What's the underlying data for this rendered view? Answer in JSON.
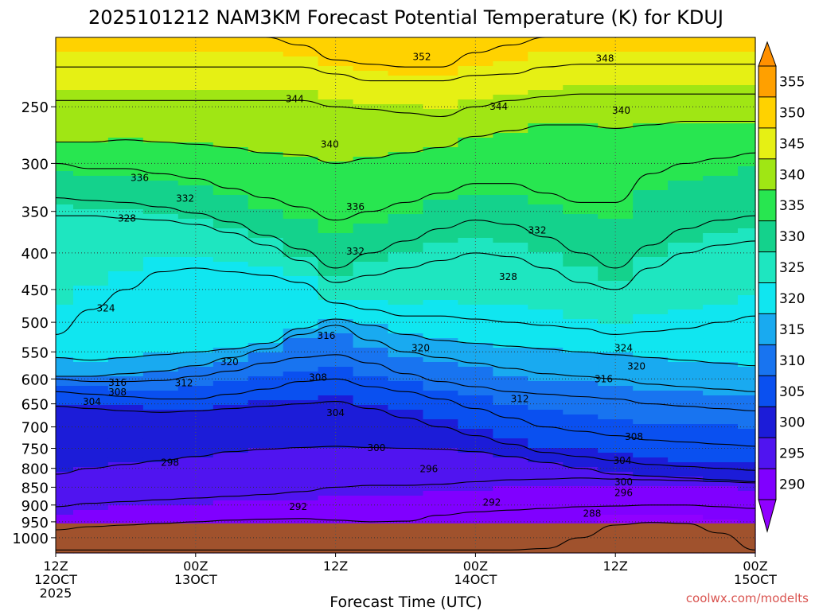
{
  "chart_data": {
    "type": "contour",
    "title": "2025101212 NAM3KM Forecast Potential Temperature (K) for KDUJ",
    "xlabel": "Forecast Time (UTC)",
    "ylabel": "",
    "credit": "coolwx.com/modelts",
    "x_ticks": [
      {
        "hour": 0,
        "l1": "12Z",
        "l2": "12OCT",
        "l3": "2025"
      },
      {
        "hour": 12,
        "l1": "00Z",
        "l2": "13OCT",
        "l3": ""
      },
      {
        "hour": 24,
        "l1": "12Z",
        "l2": "",
        "l3": ""
      },
      {
        "hour": 36,
        "l1": "00Z",
        "l2": "14OCT",
        "l3": ""
      },
      {
        "hour": 48,
        "l1": "12Z",
        "l2": "",
        "l3": ""
      },
      {
        "hour": 60,
        "l1": "00Z",
        "l2": "15OCT",
        "l3": ""
      }
    ],
    "y_ticks": [
      250,
      300,
      350,
      400,
      450,
      500,
      550,
      600,
      650,
      700,
      750,
      800,
      850,
      900,
      950,
      1000
    ],
    "yaxis": {
      "scale": "log",
      "top_hPa": 200,
      "bottom_hPa": 1050
    },
    "xaxis": {
      "start_hour": 0,
      "end_hour": 60
    },
    "ground_level_hPa": 955,
    "colorbar": {
      "levels": [
        290,
        295,
        300,
        305,
        310,
        315,
        320,
        325,
        330,
        335,
        340,
        345,
        350,
        355
      ],
      "colors": [
        "#8000ff",
        "#5014f0",
        "#1c1cd8",
        "#0a50f0",
        "#1874f0",
        "#19aaf0",
        "#10e6f0",
        "#1ee6c0",
        "#14d28c",
        "#28e650",
        "#a0e614",
        "#e6f014",
        "#ffd200",
        "#ffa000"
      ],
      "over_color": "#ff9000",
      "under_color": "#9000ff",
      "ground_color": "#a0522d"
    },
    "profile_hours": [
      0,
      3,
      6,
      9,
      12,
      15,
      18,
      21,
      24,
      27,
      30,
      33,
      36,
      39,
      42,
      45,
      48,
      51,
      54,
      57,
      60
    ],
    "isentrope_levels": [
      {
        "theta": 288,
        "pressures": [
          1040,
          1040,
          1040,
          1040,
          1040,
          1040,
          1040,
          1040,
          1040,
          1040,
          1040,
          1040,
          1040,
          1040,
          1035,
          1000,
          960,
          952,
          955,
          985,
          1040
        ]
      },
      {
        "theta": 292,
        "pressures": [
          975,
          965,
          960,
          955,
          950,
          945,
          942,
          940,
          945,
          950,
          948,
          930,
          920,
          915,
          910,
          905,
          903,
          900,
          900,
          905,
          910
        ]
      },
      {
        "theta": 296,
        "pressures": [
          905,
          895,
          890,
          885,
          880,
          875,
          870,
          862,
          850,
          845,
          845,
          842,
          835,
          830,
          828,
          825,
          828,
          830,
          832,
          835,
          838
        ]
      },
      {
        "theta": 300,
        "pressures": [
          815,
          800,
          790,
          780,
          770,
          758,
          752,
          748,
          745,
          748,
          750,
          752,
          758,
          770,
          785,
          800,
          815,
          820,
          825,
          830,
          835
        ]
      },
      {
        "theta": 304,
        "pressures": [
          655,
          660,
          665,
          668,
          665,
          660,
          655,
          650,
          645,
          660,
          680,
          700,
          720,
          740,
          760,
          770,
          780,
          790,
          795,
          800,
          805
        ]
      },
      {
        "theta": 308,
        "pressures": [
          625,
          630,
          635,
          640,
          640,
          630,
          620,
          605,
          600,
          615,
          625,
          640,
          660,
          680,
          700,
          710,
          720,
          730,
          735,
          740,
          745
        ]
      },
      {
        "theta": 312,
        "pressures": [
          600,
          605,
          605,
          603,
          595,
          585,
          570,
          560,
          555,
          570,
          590,
          605,
          615,
          625,
          630,
          635,
          640,
          650,
          655,
          660,
          665
        ]
      },
      {
        "theta": 316,
        "pressures": [
          595,
          595,
          590,
          585,
          575,
          560,
          545,
          520,
          505,
          530,
          550,
          560,
          570,
          580,
          590,
          595,
          600,
          610,
          615,
          620,
          625
        ]
      },
      {
        "theta": 320,
        "pressures": [
          560,
          565,
          560,
          555,
          550,
          545,
          535,
          510,
          495,
          505,
          520,
          530,
          535,
          540,
          545,
          550,
          555,
          560,
          565,
          570,
          575
        ]
      },
      {
        "theta": 324,
        "pressures": [
          520,
          480,
          450,
          425,
          420,
          425,
          430,
          440,
          470,
          480,
          490,
          490,
          495,
          500,
          505,
          510,
          520,
          515,
          510,
          500,
          490
        ]
      },
      {
        "theta": 328,
        "pressures": [
          355,
          355,
          358,
          360,
          365,
          375,
          390,
          410,
          440,
          430,
          420,
          410,
          400,
          405,
          420,
          440,
          450,
          420,
          400,
          390,
          385
        ]
      },
      {
        "theta": 332,
        "pressures": [
          335,
          338,
          340,
          345,
          352,
          362,
          378,
          395,
          420,
          400,
          385,
          370,
          360,
          365,
          380,
          400,
          420,
          390,
          370,
          360,
          355
        ]
      },
      {
        "theta": 336,
        "pressures": [
          300,
          305,
          305,
          310,
          315,
          325,
          335,
          345,
          360,
          350,
          340,
          330,
          320,
          320,
          330,
          340,
          340,
          310,
          300,
          295,
          290
        ]
      },
      {
        "theta": 340,
        "pressures": [
          280,
          280,
          278,
          280,
          282,
          285,
          290,
          292,
          300,
          295,
          290,
          285,
          275,
          270,
          265,
          265,
          268,
          265,
          262,
          262,
          262
        ]
      },
      {
        "theta": 344,
        "pressures": [
          245,
          245,
          245,
          245,
          245,
          245,
          245,
          245,
          250,
          252,
          255,
          258,
          250,
          245,
          242,
          240,
          240,
          240,
          240,
          240,
          240
        ]
      },
      {
        "theta": 348,
        "pressures": [
          220,
          220,
          220,
          220,
          220,
          220,
          220,
          220,
          225,
          230,
          230,
          230,
          226,
          225,
          220,
          218,
          218,
          218,
          218,
          218,
          218
        ]
      },
      {
        "theta": 352,
        "pressures": [
          200,
          200,
          200,
          200,
          200,
          200,
          200,
          205,
          215,
          218,
          220,
          220,
          210,
          205,
          200,
          200,
          200,
          200,
          200,
          200,
          200
        ]
      }
    ],
    "contour_labels": [
      {
        "theta": 352,
        "hour": 31.4,
        "hPa": 213
      },
      {
        "theta": 348,
        "hour": 47.1,
        "hPa": 214
      },
      {
        "theta": 344,
        "hour": 20.5,
        "hPa": 244
      },
      {
        "theta": 344,
        "hour": 38.0,
        "hPa": 250
      },
      {
        "theta": 340,
        "hour": 48.5,
        "hPa": 253
      },
      {
        "theta": 340,
        "hour": 23.5,
        "hPa": 282
      },
      {
        "theta": 336,
        "hour": 7.2,
        "hPa": 314
      },
      {
        "theta": 332,
        "hour": 11.1,
        "hPa": 336
      },
      {
        "theta": 336,
        "hour": 25.7,
        "hPa": 345
      },
      {
        "theta": 328,
        "hour": 6.1,
        "hPa": 358
      },
      {
        "theta": 332,
        "hour": 41.3,
        "hPa": 372
      },
      {
        "theta": 332,
        "hour": 25.7,
        "hPa": 398
      },
      {
        "theta": 328,
        "hour": 38.8,
        "hPa": 432
      },
      {
        "theta": 324,
        "hour": 4.3,
        "hPa": 478
      },
      {
        "theta": 316,
        "hour": 23.2,
        "hPa": 522
      },
      {
        "theta": 320,
        "hour": 31.3,
        "hPa": 543
      },
      {
        "theta": 324,
        "hour": 48.7,
        "hPa": 543
      },
      {
        "theta": 320,
        "hour": 14.9,
        "hPa": 568
      },
      {
        "theta": 320,
        "hour": 49.8,
        "hPa": 576
      },
      {
        "theta": 308,
        "hour": 22.5,
        "hPa": 597
      },
      {
        "theta": 316,
        "hour": 47.0,
        "hPa": 600
      },
      {
        "theta": 316,
        "hour": 5.3,
        "hPa": 607
      },
      {
        "theta": 312,
        "hour": 11.0,
        "hPa": 608
      },
      {
        "theta": 308,
        "hour": 5.3,
        "hPa": 626
      },
      {
        "theta": 312,
        "hour": 39.8,
        "hPa": 640
      },
      {
        "theta": 304,
        "hour": 3.1,
        "hPa": 646
      },
      {
        "theta": 304,
        "hour": 24.0,
        "hPa": 669
      },
      {
        "theta": 308,
        "hour": 49.6,
        "hPa": 723
      },
      {
        "theta": 300,
        "hour": 27.5,
        "hPa": 749
      },
      {
        "theta": 304,
        "hour": 48.6,
        "hPa": 780
      },
      {
        "theta": 298,
        "hour": 9.8,
        "hPa": 785
      },
      {
        "theta": 296,
        "hour": 32.0,
        "hPa": 802
      },
      {
        "theta": 300,
        "hour": 48.7,
        "hPa": 836
      },
      {
        "theta": 296,
        "hour": 48.7,
        "hPa": 865
      },
      {
        "theta": 292,
        "hour": 20.8,
        "hPa": 905
      },
      {
        "theta": 292,
        "hour": 37.4,
        "hPa": 892
      },
      {
        "theta": 288,
        "hour": 46.0,
        "hPa": 925
      }
    ]
  }
}
